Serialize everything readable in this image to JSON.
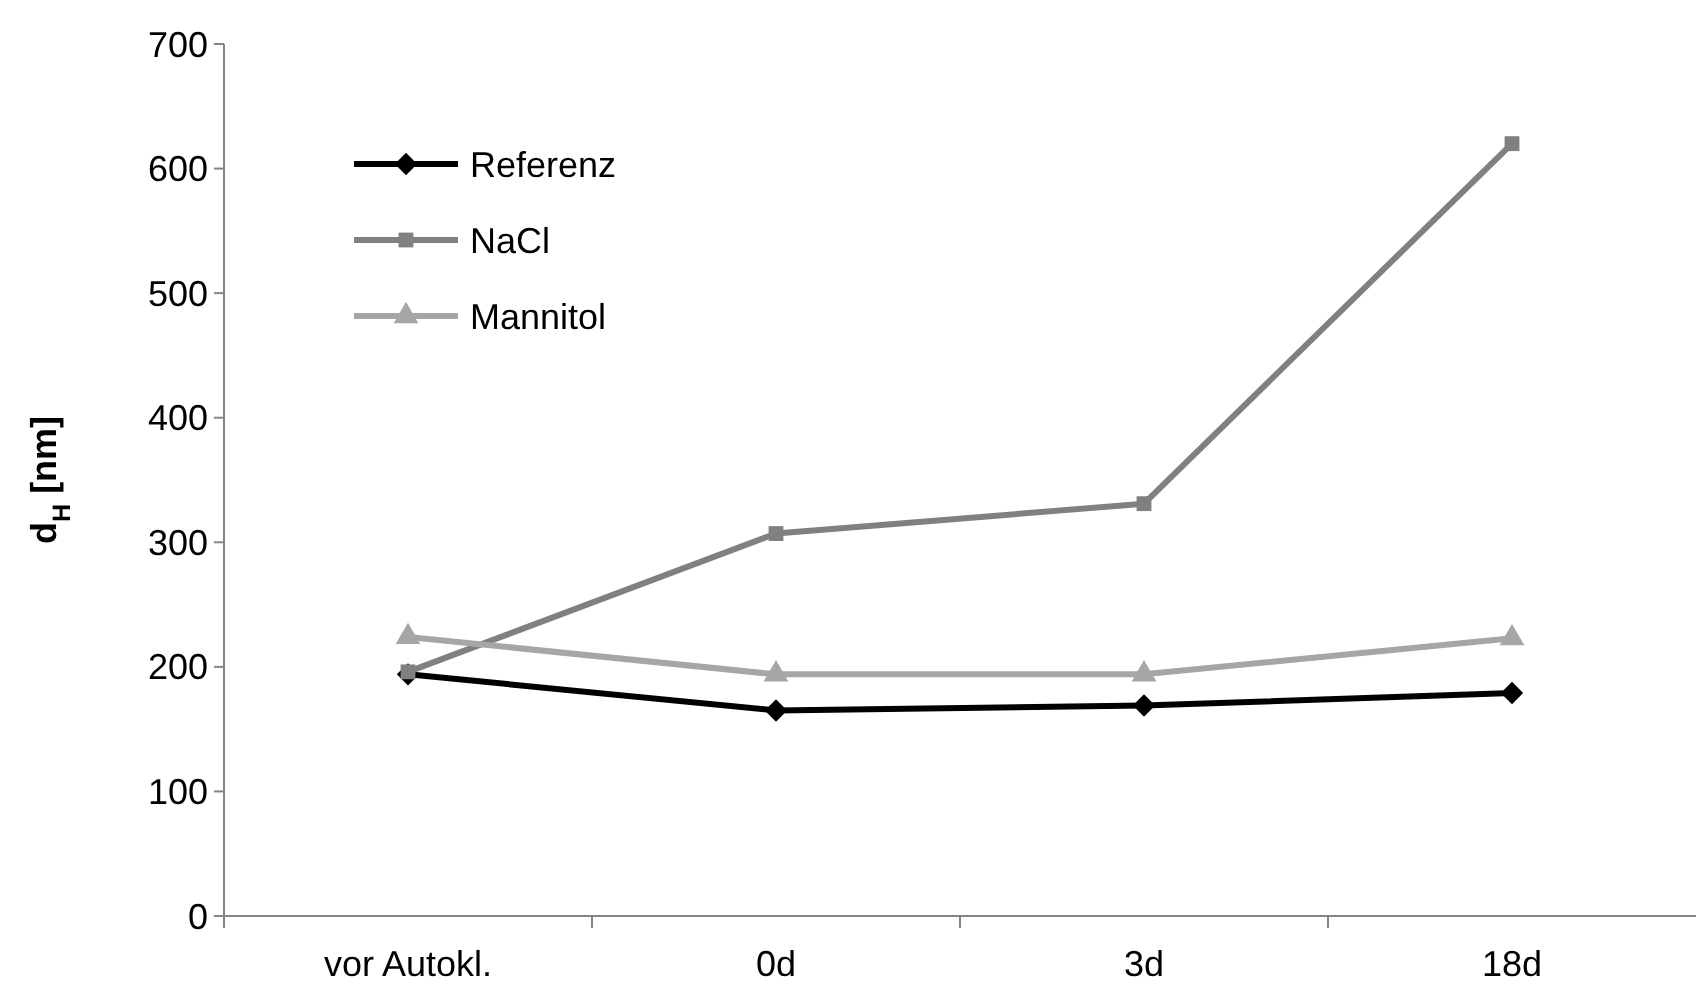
{
  "chart_data": {
    "type": "line",
    "ylabel": "d$_{H}$ [nm]",
    "categories": [
      "vor Autokl.",
      "0d",
      "3d",
      "18d"
    ],
    "series": [
      {
        "name": "Referenz",
        "color": "#000000",
        "marker": "diamond",
        "values": [
          194,
          165,
          169,
          179
        ]
      },
      {
        "name": "NaCl",
        "color": "#808080",
        "marker": "square",
        "values": [
          196,
          307,
          331,
          620
        ]
      },
      {
        "name": "Mannitol",
        "color": "#a6a6a6",
        "marker": "triangle",
        "values": [
          224,
          194,
          194,
          223
        ]
      }
    ],
    "ylim": [
      0,
      700
    ],
    "yticks": [
      0,
      100,
      200,
      300,
      400,
      500,
      600,
      700
    ],
    "grid": false,
    "legend": "top left"
  }
}
